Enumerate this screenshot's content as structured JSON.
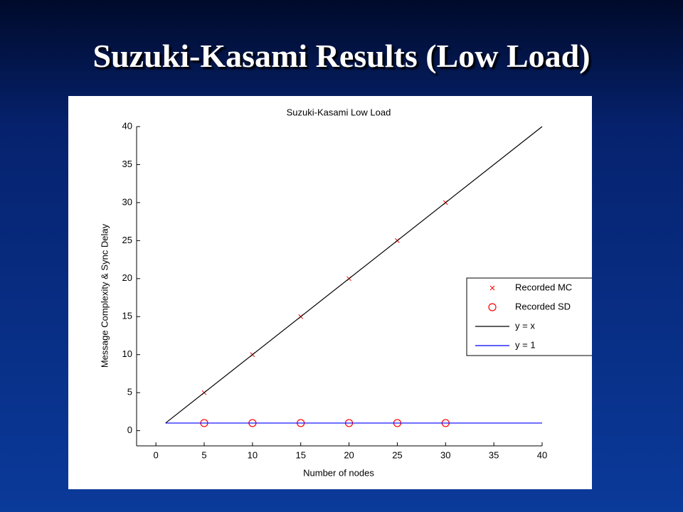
{
  "slide_title": "Suzuki-Kasami Results (Low Load)",
  "chart_data": {
    "type": "line",
    "title": "Suzuki-Kasami Low Load",
    "xlabel": "Number of nodes",
    "ylabel": "Message Complexity & Sync Delay",
    "xlim": [
      -2,
      40
    ],
    "ylim": [
      -2,
      40
    ],
    "xticks": [
      0,
      5,
      10,
      15,
      20,
      25,
      30,
      35,
      40
    ],
    "yticks": [
      0,
      5,
      10,
      15,
      20,
      25,
      30,
      35,
      40
    ],
    "legend": "east",
    "series": [
      {
        "name": "Recorded MC",
        "color": "#ff0000",
        "style": "x",
        "x": [
          5,
          10,
          15,
          20,
          25,
          30
        ],
        "values": [
          5,
          10,
          15,
          20,
          25,
          30
        ]
      },
      {
        "name": "Recorded SD",
        "color": "#ff0000",
        "style": "o",
        "x": [
          5,
          10,
          15,
          20,
          25,
          30
        ],
        "values": [
          1,
          1,
          1,
          1,
          1,
          1
        ]
      },
      {
        "name": "y = x",
        "color": "#000000",
        "style": "-",
        "x": [
          1,
          40
        ],
        "values": [
          1,
          40
        ]
      },
      {
        "name": "y = 1",
        "color": "#0000ff",
        "style": "-",
        "x": [
          1,
          40
        ],
        "values": [
          1,
          1
        ]
      }
    ]
  }
}
